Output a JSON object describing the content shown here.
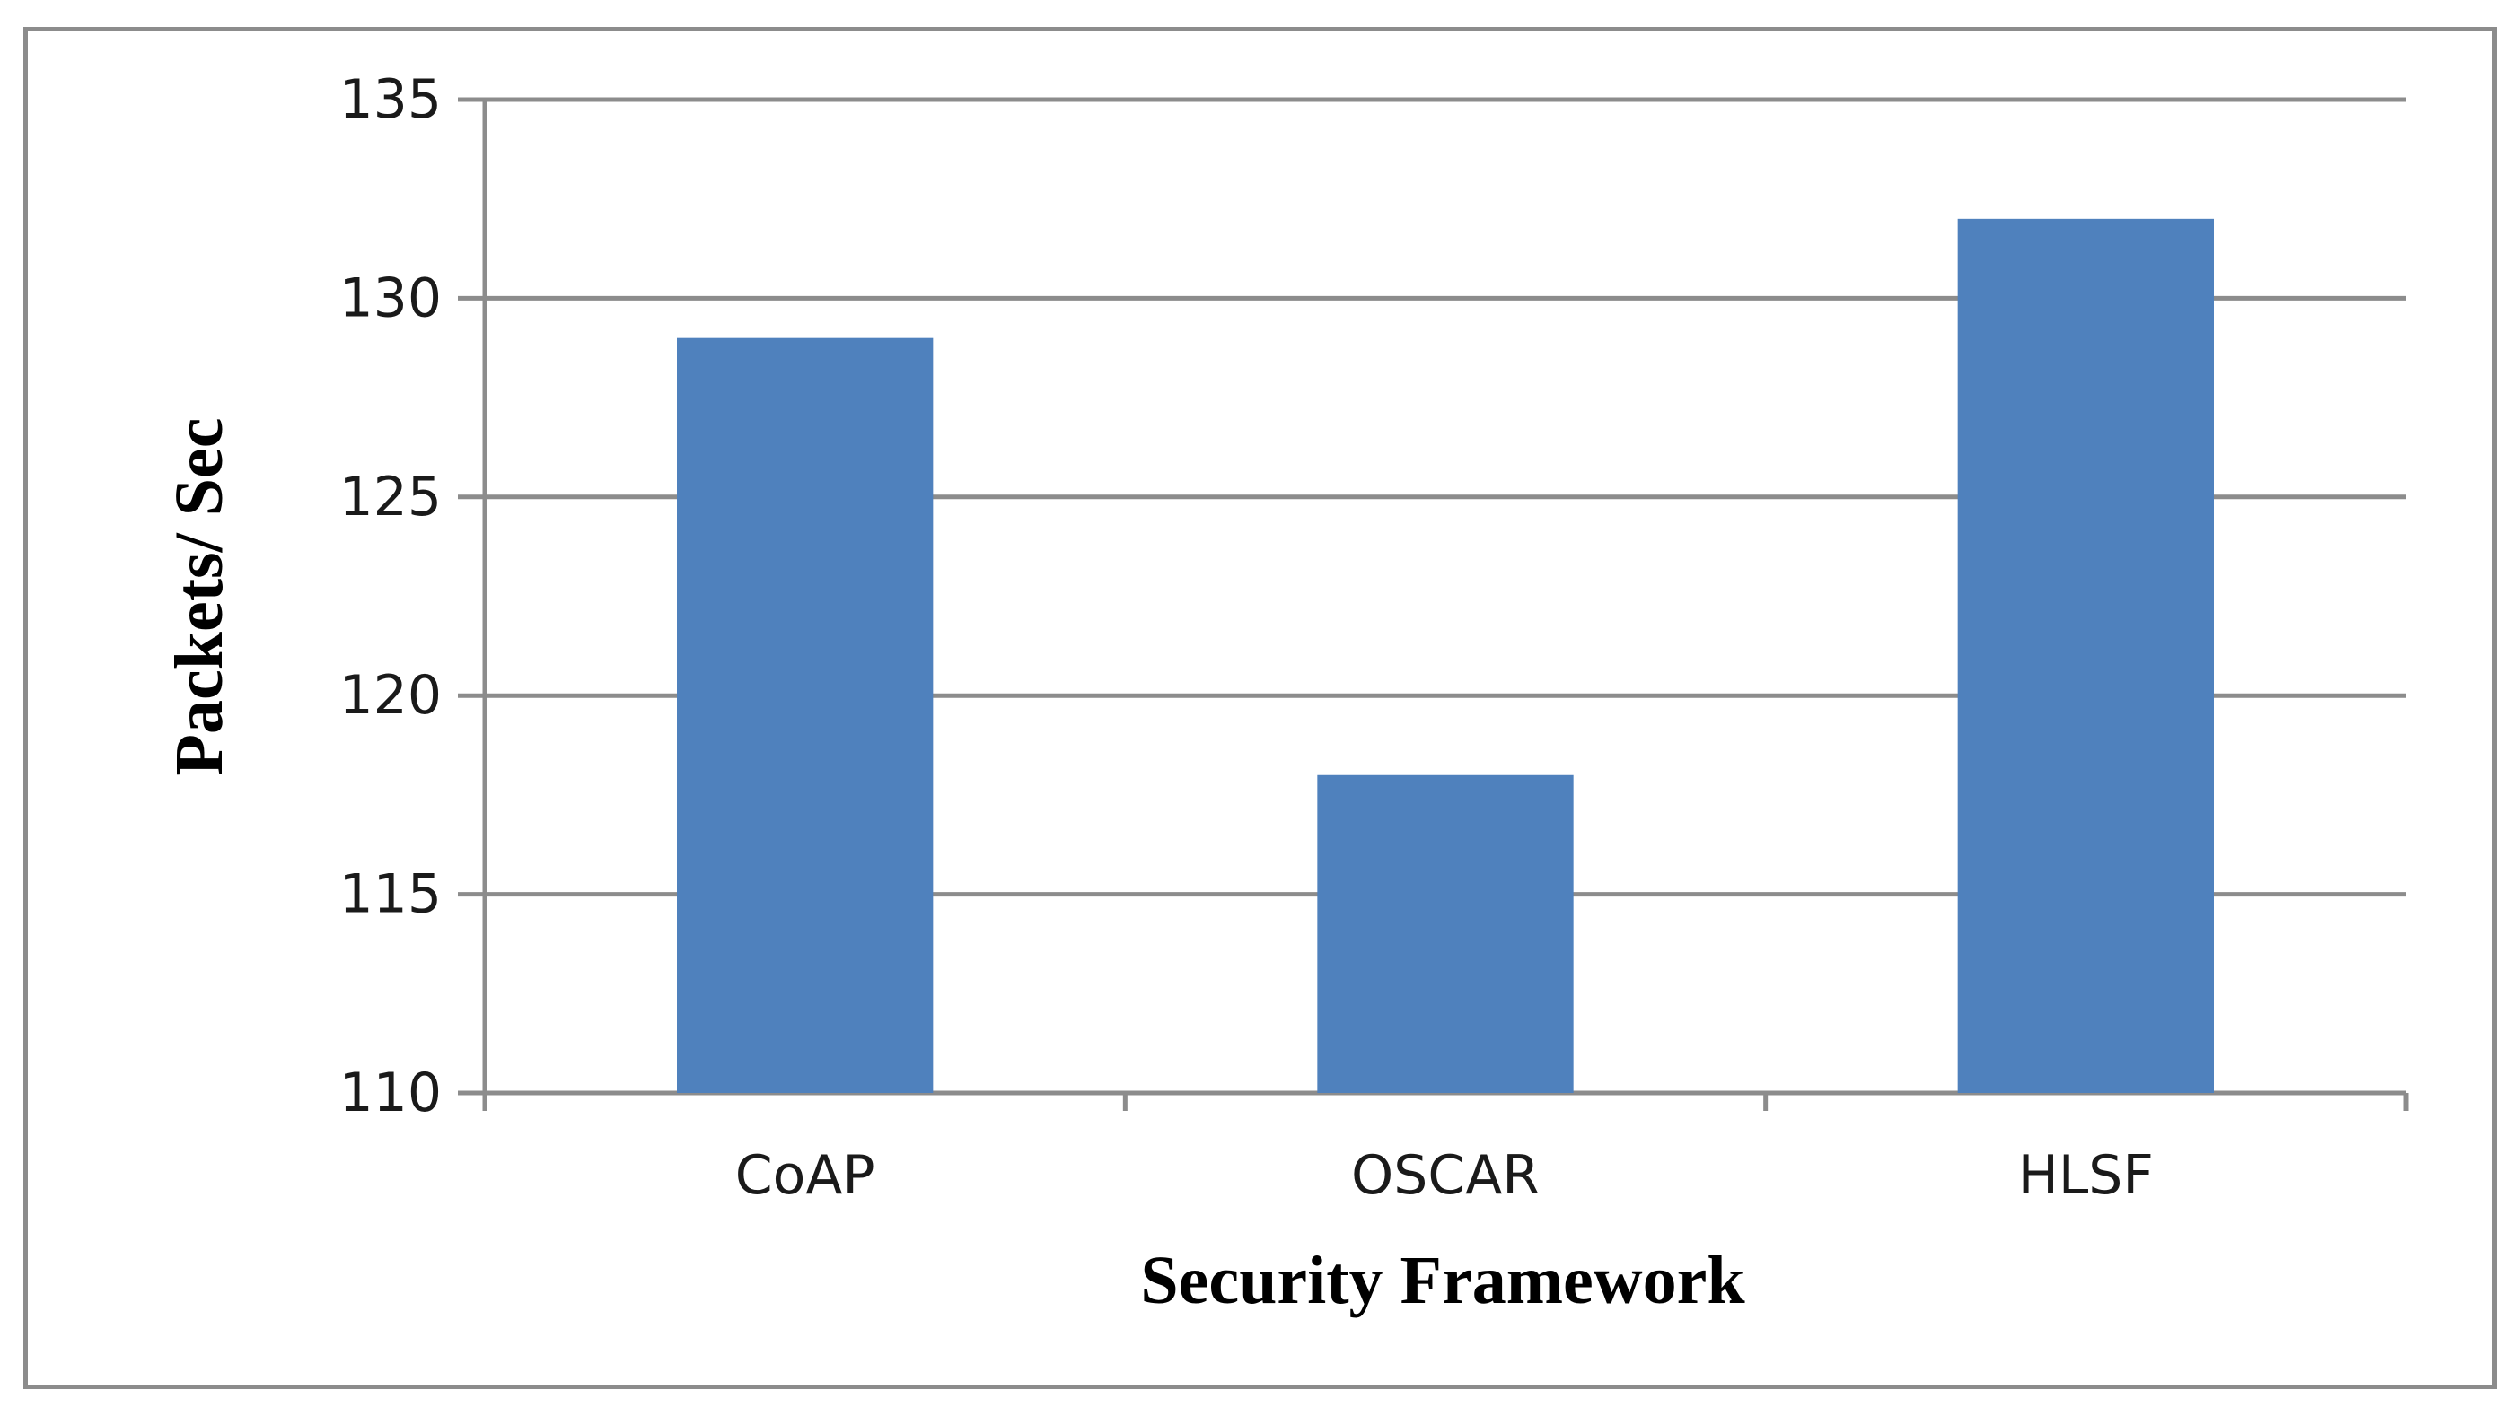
{
  "chart_data": {
    "type": "bar",
    "categories": [
      "CoAP",
      "OSCAR",
      "HLSF"
    ],
    "values": [
      129,
      118,
      132
    ],
    "xlabel": "Security Framework",
    "ylabel": "Packets/ Sec",
    "ylim": [
      110,
      135
    ],
    "yticks": [
      110,
      115,
      120,
      125,
      130,
      135
    ],
    "ytick_labels": [
      "110",
      "115",
      "120",
      "125",
      "130",
      "135"
    ],
    "grid": true,
    "legend": "none",
    "bar_color": "#4f81bd",
    "grid_color": "#8c8c8c",
    "frame_color": "#8c8c8c"
  }
}
